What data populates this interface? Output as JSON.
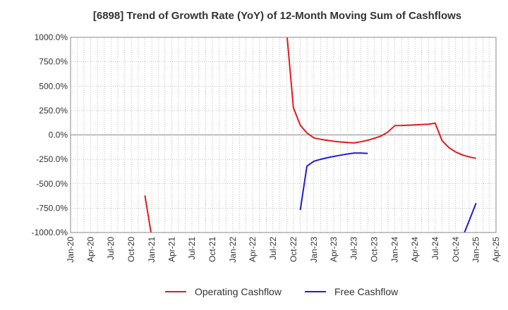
{
  "chart_data": {
    "type": "line",
    "title": "[6898]  Trend of Growth Rate (YoY) of 12-Month Moving Sum of Cashflows",
    "xlabel": "",
    "ylabel": "",
    "ylim": [
      -1000,
      1000
    ],
    "y_ticks": [
      1000,
      750,
      500,
      250,
      0,
      -250,
      -500,
      -750,
      -1000
    ],
    "y_tick_labels": [
      "1000.0%",
      "750.0%",
      "500.0%",
      "250.0%",
      "0.0%",
      "-250.0%",
      "-500.0%",
      "-750.0%",
      "-1000.0%"
    ],
    "x_ticks": [
      "2020-01",
      "2020-04",
      "2020-07",
      "2020-10",
      "2021-01",
      "2021-04",
      "2021-07",
      "2021-10",
      "2022-01",
      "2022-04",
      "2022-07",
      "2022-10",
      "2023-01",
      "2023-04",
      "2023-07",
      "2023-10",
      "2024-01",
      "2024-04",
      "2024-07",
      "2024-10",
      "2025-01",
      "2025-04"
    ],
    "x_tick_labels": [
      "Jan-20",
      "Apr-20",
      "Jul-20",
      "Oct-20",
      "Jan-21",
      "Apr-21",
      "Jul-21",
      "Oct-21",
      "Jan-22",
      "Apr-22",
      "Jul-22",
      "Oct-22",
      "Jan-23",
      "Apr-23",
      "Jul-23",
      "Oct-23",
      "Jan-24",
      "Apr-24",
      "Jul-24",
      "Oct-24",
      "Jan-25",
      "Apr-25"
    ],
    "grid": true,
    "legend_position": "bottom",
    "series": [
      {
        "name": "Operating Cashflow",
        "color": "#e31a1c",
        "segments": [
          [
            [
              "2020-12",
              -620
            ],
            [
              "2021-01",
              -1050
            ]
          ],
          [
            [
              "2022-09",
              1050
            ],
            [
              "2022-10",
              280
            ],
            [
              "2022-11",
              100
            ],
            [
              "2022-12",
              20
            ],
            [
              "2023-01",
              -30
            ],
            [
              "2023-02",
              -45
            ],
            [
              "2023-03",
              -55
            ],
            [
              "2023-04",
              -65
            ],
            [
              "2023-05",
              -72
            ],
            [
              "2023-06",
              -78
            ],
            [
              "2023-07",
              -82
            ],
            [
              "2023-08",
              -70
            ],
            [
              "2023-09",
              -55
            ],
            [
              "2023-10",
              -35
            ],
            [
              "2023-11",
              -10
            ],
            [
              "2023-12",
              30
            ],
            [
              "2024-01",
              95
            ],
            [
              "2024-02",
              97
            ],
            [
              "2024-03",
              100
            ],
            [
              "2024-04",
              103
            ],
            [
              "2024-05",
              106
            ],
            [
              "2024-06",
              110
            ],
            [
              "2024-07",
              120
            ],
            [
              "2024-08",
              -60
            ],
            [
              "2024-09",
              -130
            ],
            [
              "2024-10",
              -175
            ],
            [
              "2024-11",
              -205
            ],
            [
              "2024-12",
              -225
            ],
            [
              "2025-01",
              -240
            ]
          ]
        ]
      },
      {
        "name": "Free Cashflow",
        "color": "#1f1fcc",
        "segments": [
          [
            [
              "2022-11",
              -770
            ],
            [
              "2022-12",
              -320
            ],
            [
              "2023-01",
              -270
            ],
            [
              "2023-02",
              -250
            ],
            [
              "2023-03",
              -235
            ],
            [
              "2023-04",
              -220
            ],
            [
              "2023-05",
              -208
            ],
            [
              "2023-06",
              -196
            ],
            [
              "2023-07",
              -186
            ],
            [
              "2023-08",
              -186
            ],
            [
              "2023-09",
              -190
            ]
          ],
          [
            [
              "2024-11",
              -1050
            ],
            [
              "2024-12",
              -880
            ],
            [
              "2025-01",
              -700
            ]
          ]
        ]
      }
    ]
  }
}
